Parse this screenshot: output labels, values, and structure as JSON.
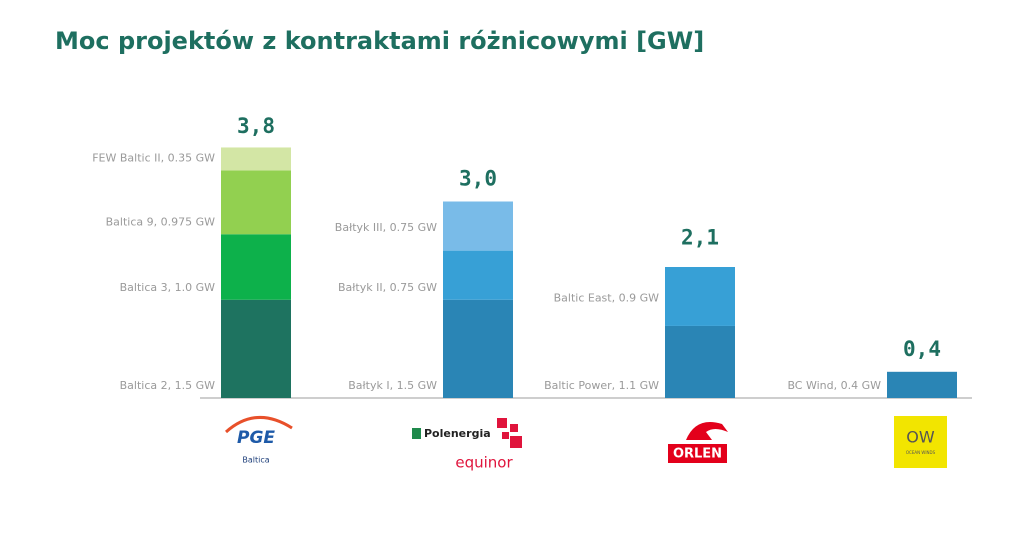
{
  "title": "Moc projektów z kontraktami różnicowymi [GW]",
  "chart_data": {
    "type": "stacked-bar",
    "groups": [
      {
        "total": 3.8,
        "total_label": "3,8",
        "logo_text": [
          "PGE",
          "Baltica"
        ],
        "segments": [
          {
            "label": "Baltica 2, 1.5 GW",
            "value": 1.5,
            "color": "#1e7360"
          },
          {
            "label": "Baltica 3, 1.0 GW",
            "value": 1.0,
            "color": "#0db14b"
          },
          {
            "label": "Baltica 9, 0.975 GW",
            "value": 0.975,
            "color": "#92d050"
          },
          {
            "label": "FEW Baltic  II, 0.35 GW",
            "value": 0.35,
            "color": "#d3e6a5"
          }
        ]
      },
      {
        "total": 3.0,
        "total_label": "3,0",
        "logo_text": [
          "Polenergia",
          "equinor"
        ],
        "segments": [
          {
            "label": "Bałtyk I, 1.5 GW",
            "value": 1.5,
            "color": "#2a85b5"
          },
          {
            "label": "Bałtyk II, 0.75 GW",
            "value": 0.75,
            "color": "#37a0d6"
          },
          {
            "label": "Bałtyk III, 0.75 GW",
            "value": 0.75,
            "color": "#79bbe8"
          }
        ]
      },
      {
        "total": 2.1,
        "total_label": "2,1",
        "logo_text": [
          "ORLEN"
        ],
        "segments": [
          {
            "label": "Baltic Power, 1.1 GW",
            "value": 1.1,
            "color": "#2a85b5"
          },
          {
            "label": "Baltic East, 0.9 GW",
            "value": 0.9,
            "color": "#37a0d6"
          }
        ]
      },
      {
        "total": 0.4,
        "total_label": "0,4",
        "logo_text": [
          "OW",
          "OCEAN WINDS"
        ],
        "segments": [
          {
            "label": "BC Wind, 0.4 GW",
            "value": 0.4,
            "color": "#2a85b5"
          }
        ]
      }
    ]
  }
}
